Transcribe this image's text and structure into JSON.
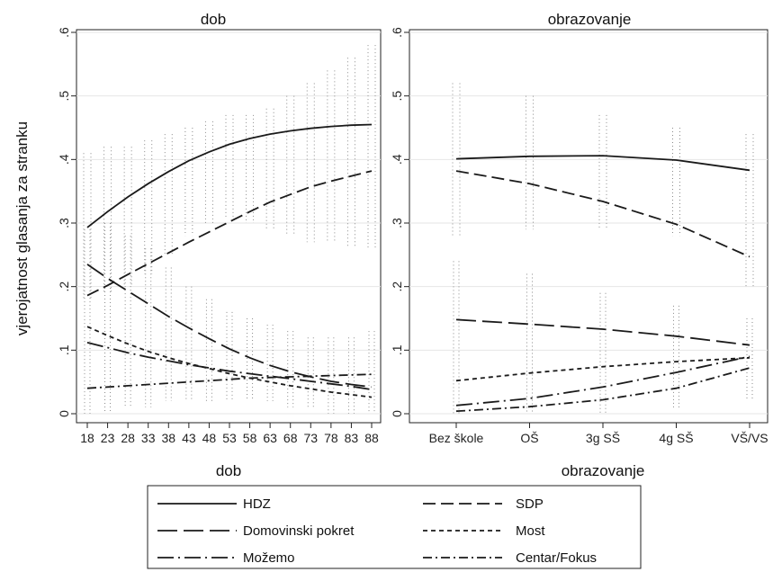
{
  "figure": {
    "ylabel": "vjerojatnost glasanja za stranku",
    "legend_location": "bottom"
  },
  "legend": {
    "items": [
      {
        "label": "HDZ",
        "dash": "solid"
      },
      {
        "label": "SDP",
        "dash": "dash"
      },
      {
        "label": "Domovinski pokret",
        "dash": "longdash"
      },
      {
        "label": "Most",
        "dash": "shortdash"
      },
      {
        "label": "Možemo",
        "dash": "longdash-dot"
      },
      {
        "label": "Centar/Fokus",
        "dash": "dashdot"
      }
    ]
  },
  "chart_data": [
    {
      "type": "line",
      "title": "dob",
      "xlabel": "dob",
      "ylabel": "vjerojatnost glasanja za stranku",
      "ylim": [
        0,
        0.6
      ],
      "yticks": [
        0,
        0.1,
        0.2,
        0.3,
        0.4,
        0.5,
        0.6
      ],
      "yticklabels": [
        "0",
        ".1",
        ".2",
        ".3",
        ".4",
        ".5",
        ".6"
      ],
      "grid": true,
      "x": [
        18,
        23,
        28,
        33,
        38,
        43,
        48,
        53,
        58,
        63,
        68,
        73,
        78,
        83,
        88
      ],
      "xticklabels": [
        "18",
        "23",
        "28",
        "33",
        "38",
        "43",
        "48",
        "53",
        "58",
        "63",
        "68",
        "73",
        "78",
        "83",
        "88"
      ],
      "series": [
        {
          "name": "HDZ",
          "values": [
            0.293,
            0.318,
            0.341,
            0.362,
            0.381,
            0.398,
            0.412,
            0.424,
            0.433,
            0.44,
            0.445,
            0.449,
            0.452,
            0.454,
            0.455
          ]
        },
        {
          "name": "SDP",
          "values": [
            0.186,
            0.202,
            0.219,
            0.236,
            0.253,
            0.27,
            0.286,
            0.302,
            0.318,
            0.333,
            0.345,
            0.357,
            0.366,
            0.374,
            0.382
          ]
        },
        {
          "name": "Domovinski pokret",
          "values": [
            0.235,
            0.213,
            0.193,
            0.173,
            0.153,
            0.135,
            0.118,
            0.102,
            0.088,
            0.076,
            0.066,
            0.058,
            0.051,
            0.046,
            0.042
          ]
        },
        {
          "name": "Most",
          "values": [
            0.137,
            0.123,
            0.11,
            0.098,
            0.088,
            0.079,
            0.071,
            0.063,
            0.056,
            0.05,
            0.044,
            0.039,
            0.034,
            0.03,
            0.026
          ]
        },
        {
          "name": "Možemo",
          "values": [
            0.112,
            0.104,
            0.096,
            0.089,
            0.083,
            0.077,
            0.072,
            0.067,
            0.063,
            0.059,
            0.055,
            0.051,
            0.047,
            0.043,
            0.038
          ]
        },
        {
          "name": "Centar/Fokus",
          "values": [
            0.04,
            0.042,
            0.044,
            0.046,
            0.048,
            0.05,
            0.052,
            0.054,
            0.056,
            0.057,
            0.058,
            0.059,
            0.06,
            0.061,
            0.062
          ]
        }
      ],
      "ci": {
        "lower": [
          0.18,
          0.19,
          0.2,
          0.22,
          0.25,
          0.28,
          0.3,
          0.31,
          0.3,
          0.29,
          0.28,
          0.27,
          0.27,
          0.26,
          0.26
        ],
        "upper": [
          0.41,
          0.42,
          0.42,
          0.43,
          0.44,
          0.45,
          0.46,
          0.47,
          0.47,
          0.48,
          0.5,
          0.52,
          0.54,
          0.56,
          0.58
        ],
        "lower_small": [
          0.0,
          0.0,
          0.01,
          0.01,
          0.02,
          0.02,
          0.02,
          0.02,
          0.02,
          0.02,
          0.01,
          0.01,
          0.0,
          0.0,
          0.0
        ],
        "upper_small": [
          0.29,
          0.3,
          0.28,
          0.26,
          0.23,
          0.2,
          0.18,
          0.16,
          0.15,
          0.14,
          0.13,
          0.12,
          0.12,
          0.12,
          0.13
        ]
      }
    },
    {
      "type": "line",
      "title": "obrazovanje",
      "xlabel": "obrazovanje",
      "ylabel": "",
      "ylim": [
        0,
        0.6
      ],
      "yticks": [
        0,
        0.1,
        0.2,
        0.3,
        0.4,
        0.5,
        0.6
      ],
      "yticklabels": [
        "0",
        ".1",
        ".2",
        ".3",
        ".4",
        ".5",
        ".6"
      ],
      "grid": true,
      "x": [
        1,
        2,
        3,
        4,
        5
      ],
      "xticklabels": [
        "Bez škole",
        "OŠ",
        "3g SŠ",
        "4g SŠ",
        "VŠ/VS"
      ],
      "series": [
        {
          "name": "HDZ",
          "values": [
            0.401,
            0.405,
            0.406,
            0.399,
            0.383
          ]
        },
        {
          "name": "SDP",
          "values": [
            0.382,
            0.362,
            0.334,
            0.298,
            0.247
          ]
        },
        {
          "name": "Domovinski pokret",
          "values": [
            0.148,
            0.141,
            0.133,
            0.122,
            0.108
          ]
        },
        {
          "name": "Most",
          "values": [
            0.052,
            0.064,
            0.074,
            0.082,
            0.088
          ]
        },
        {
          "name": "Možemo",
          "values": [
            0.013,
            0.024,
            0.042,
            0.065,
            0.09
          ]
        },
        {
          "name": "Centar/Fokus",
          "values": [
            0.004,
            0.011,
            0.022,
            0.04,
            0.072
          ]
        }
      ],
      "ci": {
        "lower": [
          0.28,
          0.29,
          0.29,
          0.28,
          0.2
        ],
        "upper": [
          0.52,
          0.5,
          0.47,
          0.45,
          0.44
        ],
        "lower_small": [
          0.0,
          0.0,
          0.0,
          0.01,
          0.02
        ],
        "upper_small": [
          0.24,
          0.22,
          0.19,
          0.17,
          0.15
        ]
      }
    }
  ]
}
